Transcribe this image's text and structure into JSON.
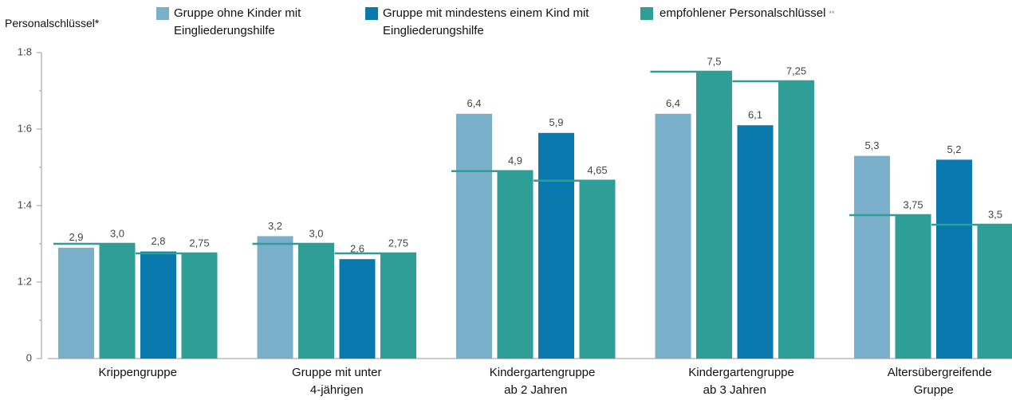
{
  "chart_data": {
    "type": "bar",
    "ylabel": "Personalschlüssel*",
    "legend_note": "**",
    "categories": [
      "Krippengruppe",
      "Gruppe mit unter 4-jährigen",
      "Kindergartengruppe ab 2 Jahren",
      "Kindergartengruppe ab 3 Jahren",
      "Altersübergreifende Gruppe"
    ],
    "series": [
      {
        "name": "Gruppe ohne Kinder mit Eingliederungshilfe",
        "color": "#7aafca",
        "values": [
          2.9,
          3.2,
          6.4,
          6.4,
          5.3
        ],
        "value_labels": [
          "2,9",
          "3,2",
          "6,4",
          "6,4",
          "5,3"
        ]
      },
      {
        "name": "Gruppe mit mindestens einem Kind mit Eingliederungshilfe",
        "color": "#0a79ad",
        "values": [
          2.8,
          2.6,
          5.9,
          6.1,
          5.2
        ],
        "value_labels": [
          "2,8",
          "2,6",
          "5,9",
          "6,1",
          "5,2"
        ]
      },
      {
        "name": "empfohlener Personalschlüssel",
        "color": "#2e9e96",
        "values": [
          [
            3.0,
            2.75
          ],
          [
            3.0,
            2.75
          ],
          [
            4.9,
            4.65
          ],
          [
            7.5,
            7.25
          ],
          [
            3.75,
            3.5
          ]
        ],
        "value_labels": [
          [
            "3,0",
            "2,75"
          ],
          [
            "3,0",
            "2,75"
          ],
          [
            "4,9",
            "4,65"
          ],
          [
            "7,5",
            "7,25"
          ],
          [
            "3,75",
            "3,5"
          ]
        ]
      }
    ],
    "ylim": [
      0,
      8
    ],
    "yticks": [
      {
        "value": 0,
        "label": "0"
      },
      {
        "value": 2,
        "label": "1:2"
      },
      {
        "value": 4,
        "label": "1:4"
      },
      {
        "value": 6,
        "label": "1:6"
      },
      {
        "value": 8,
        "label": "1:8"
      }
    ],
    "yminorticks": [
      1,
      3,
      5,
      7
    ]
  }
}
